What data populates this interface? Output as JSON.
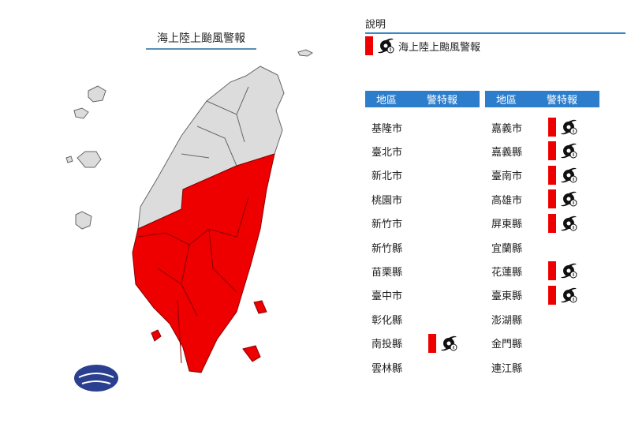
{
  "map": {
    "title": "海上陸上颱風警報",
    "warned_color": "#ee0000",
    "unwarned_color": "#dcdcdc"
  },
  "legend": {
    "title": "說明",
    "item_label": "海上陸上颱風警報",
    "item_icon": "typhoon-icon",
    "item_color": "#ee0000"
  },
  "table": {
    "header_region": "地區",
    "header_warning": "警特報",
    "left": [
      {
        "name": "基隆市",
        "warning": false
      },
      {
        "name": "臺北市",
        "warning": false
      },
      {
        "name": "新北市",
        "warning": false
      },
      {
        "name": "桃園市",
        "warning": false
      },
      {
        "name": "新竹市",
        "warning": false
      },
      {
        "name": "新竹縣",
        "warning": false
      },
      {
        "name": "苗栗縣",
        "warning": false
      },
      {
        "name": "臺中市",
        "warning": false
      },
      {
        "name": "彰化縣",
        "warning": false
      },
      {
        "name": "南投縣",
        "warning": true
      },
      {
        "name": "雲林縣",
        "warning": false
      }
    ],
    "right": [
      {
        "name": "嘉義市",
        "warning": true
      },
      {
        "name": "嘉義縣",
        "warning": true
      },
      {
        "name": "臺南市",
        "warning": true
      },
      {
        "name": "高雄市",
        "warning": true
      },
      {
        "name": "屏東縣",
        "warning": true
      },
      {
        "name": "宜蘭縣",
        "warning": false
      },
      {
        "name": "花蓮縣",
        "warning": true
      },
      {
        "name": "臺東縣",
        "warning": true
      },
      {
        "name": "澎湖縣",
        "warning": false
      },
      {
        "name": "金門縣",
        "warning": false
      },
      {
        "name": "連江縣",
        "warning": false
      }
    ]
  }
}
